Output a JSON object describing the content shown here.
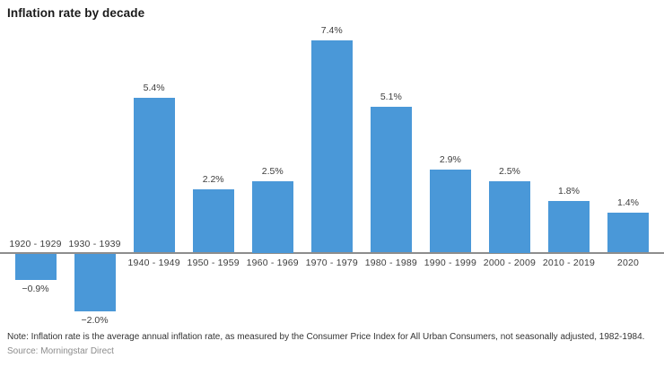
{
  "page": {
    "title": "Inflation rate by decade",
    "note": "Note: Inflation rate is the average annual inflation rate, as measured by the Consumer Price Index for All Urban Consumers, not seasonally adjusted, 1982-1984.",
    "source": "Source: Morningstar Direct"
  },
  "colors": {
    "bar": "#4a98d8",
    "axis": "#8d8d8d",
    "title_text": "#1a1a1a",
    "label_text": "#3d3d3d",
    "note_text": "#333333",
    "source_text": "#8c8c8c"
  },
  "chart_data": {
    "type": "bar",
    "title": "Inflation rate by decade",
    "categories": [
      "1920 - 1929",
      "1930 - 1939",
      "1940 - 1949",
      "1950 - 1959",
      "1960 - 1969",
      "1970 - 1979",
      "1980 - 1989",
      "1990 - 1999",
      "2000 - 2009",
      "2010 - 2019",
      "2020"
    ],
    "values": [
      -0.9,
      -2.0,
      5.4,
      2.2,
      2.5,
      7.4,
      5.1,
      2.9,
      2.5,
      1.8,
      1.4
    ],
    "value_labels": [
      "−0.9%",
      "−2.0%",
      "5.4%",
      "2.2%",
      "2.5%",
      "7.4%",
      "5.1%",
      "2.9%",
      "2.5%",
      "1.8%",
      "1.4%"
    ],
    "unit": "%",
    "xlabel": "",
    "ylabel": "",
    "ylim": [
      -2.5,
      8
    ],
    "grid": false,
    "legend": null,
    "baseline": 0,
    "bar_label_position": "outside-end",
    "category_label_position": "opposite-side-of-axis-from-bar"
  }
}
